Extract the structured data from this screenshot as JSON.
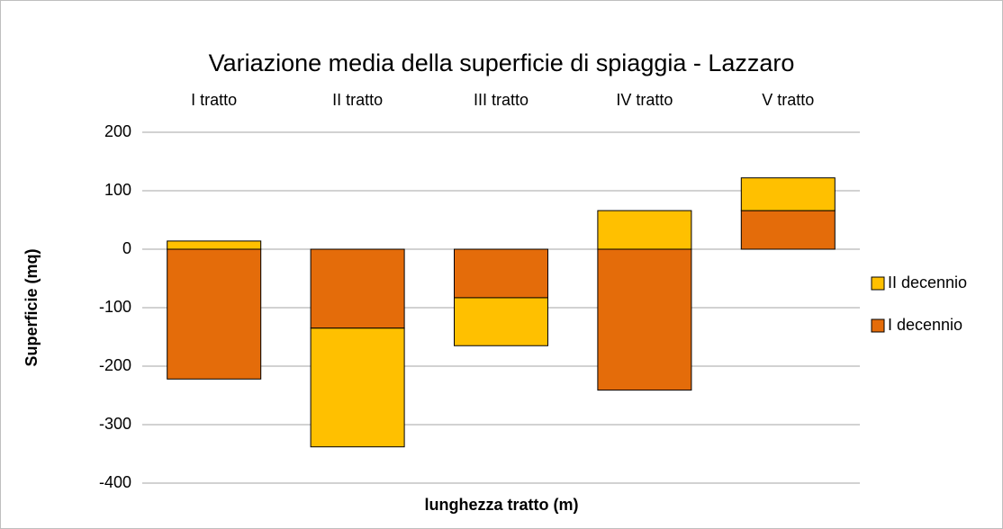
{
  "chart_data": {
    "type": "stacked_bar",
    "title": "Variazione media della superficie di spiaggia - Lazzaro",
    "x_label": "lunghezza tratto (m)",
    "y_label": "Superficie (mq)",
    "categories": [
      "I tratto",
      "II tratto",
      "III tratto",
      "IV tratto",
      "V tratto"
    ],
    "series": [
      {
        "name": "I decennio",
        "color": "#e46c0a",
        "values": [
          -222,
          -135,
          -83,
          -241,
          66
        ]
      },
      {
        "name": "II decennio",
        "color": "#ffc000",
        "values": [
          14,
          -203,
          -82,
          66,
          56
        ]
      }
    ],
    "ylim": [
      -400,
      200
    ],
    "yticks": [
      -400,
      -300,
      -200,
      -100,
      0,
      100,
      200
    ],
    "grid": true,
    "legend_position": "right"
  }
}
